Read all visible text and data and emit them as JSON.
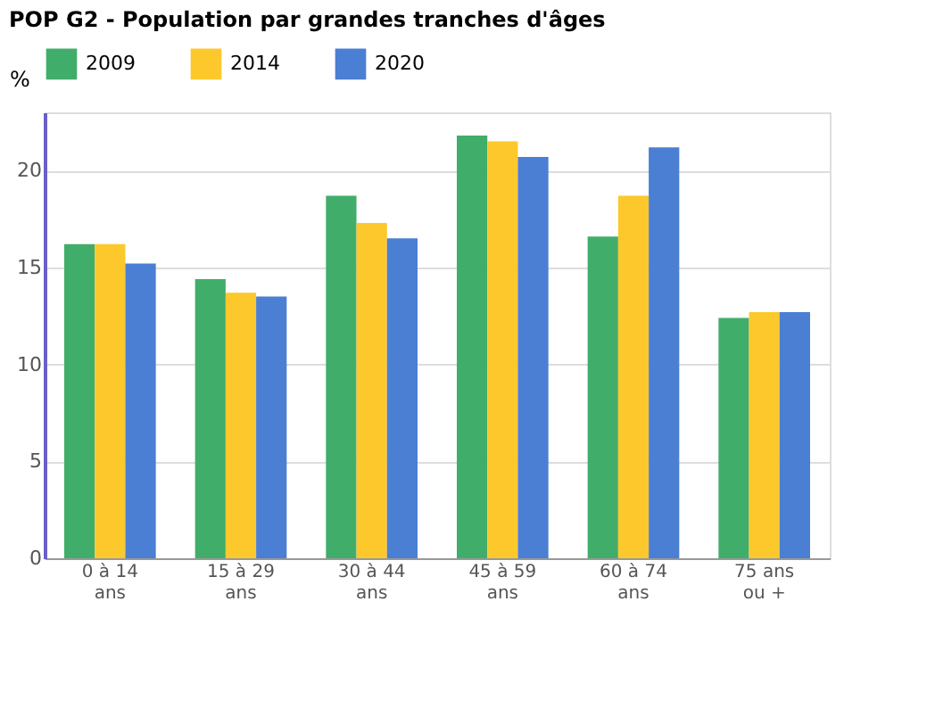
{
  "chart_data": {
    "type": "bar",
    "title": "POP G2 - Population par grandes tranches d'âges",
    "ylabel": "%",
    "categories": [
      "0 à 14\nans",
      "15 à 29\nans",
      "30 à 44\nans",
      "45 à 59\nans",
      "60 à 74\nans",
      "75 ans\nou +"
    ],
    "series": [
      {
        "name": "2009",
        "color": "#41ad6a",
        "values": [
          16.2,
          14.4,
          18.7,
          21.8,
          16.6,
          12.4
        ]
      },
      {
        "name": "2014",
        "color": "#fcc82c",
        "values": [
          16.2,
          13.7,
          17.3,
          21.5,
          18.7,
          12.7
        ]
      },
      {
        "name": "2020",
        "color": "#4a7fd3",
        "values": [
          15.2,
          13.5,
          16.5,
          20.7,
          21.2,
          12.7
        ]
      }
    ],
    "ylim": [
      0,
      23
    ],
    "yticks": [
      0,
      5,
      10,
      15,
      20
    ],
    "grid": "y",
    "legend": "top"
  }
}
